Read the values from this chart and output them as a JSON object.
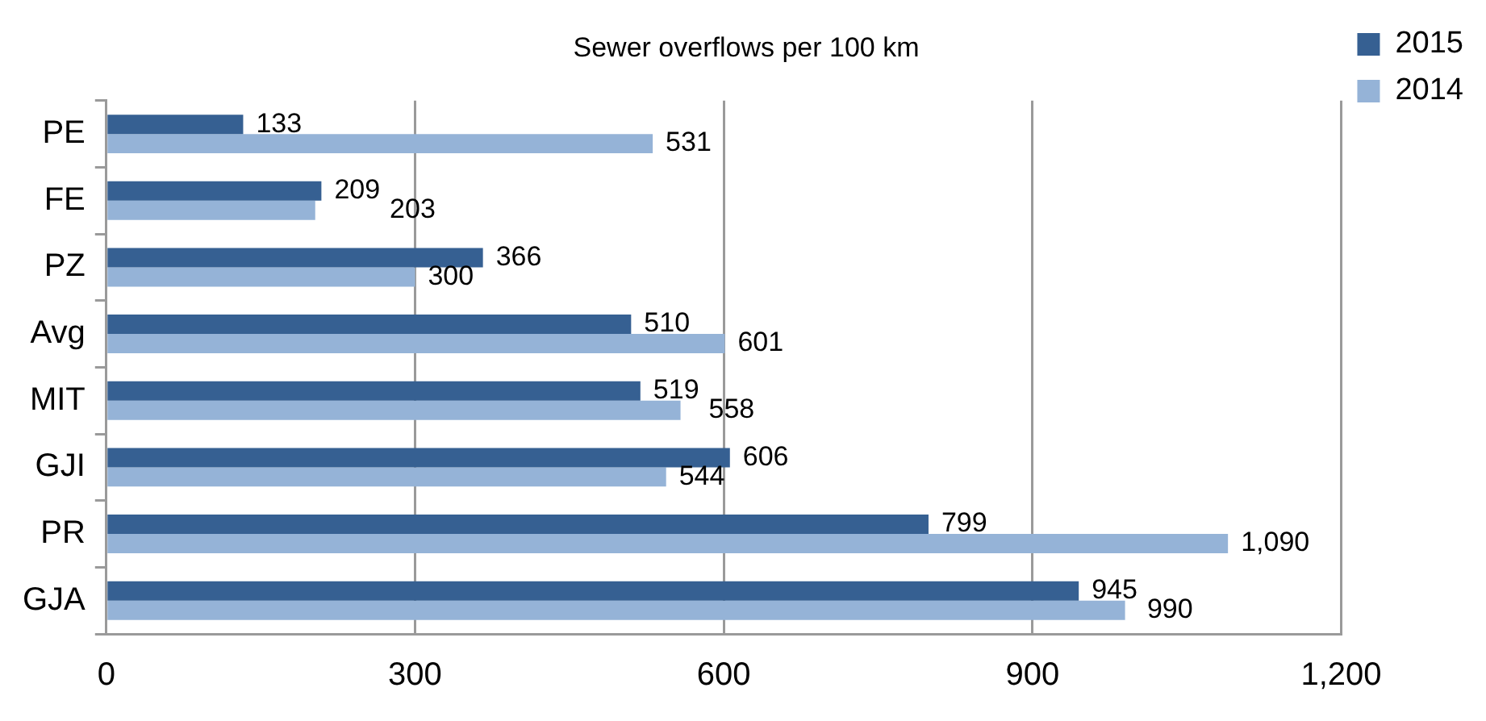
{
  "chart_data": {
    "type": "bar",
    "orientation": "horizontal",
    "title": "Sewer overflows per 100 km",
    "categories": [
      "PE",
      "FE",
      "PZ",
      "Avg",
      "MIT",
      "GJI",
      "PR",
      "GJA"
    ],
    "series": [
      {
        "name": "2015",
        "color": "#366092",
        "values": [
          133,
          209,
          366,
          510,
          519,
          606,
          799,
          945
        ],
        "value_labels": [
          "133",
          "209",
          "366",
          "510",
          "519",
          "606",
          "799",
          "945"
        ]
      },
      {
        "name": "2014",
        "color": "#95b3d7",
        "values": [
          531,
          203,
          300,
          601,
          558,
          544,
          1090,
          990
        ],
        "value_labels": [
          "531",
          "203",
          "300",
          "601",
          "558",
          "544",
          "1,090",
          "990"
        ]
      }
    ],
    "xlim": [
      0,
      1200
    ],
    "xticks": [
      0,
      300,
      600,
      900,
      {
        "value": 1200,
        "label": "1,200"
      }
    ],
    "grid": "x",
    "legend": "top right"
  }
}
